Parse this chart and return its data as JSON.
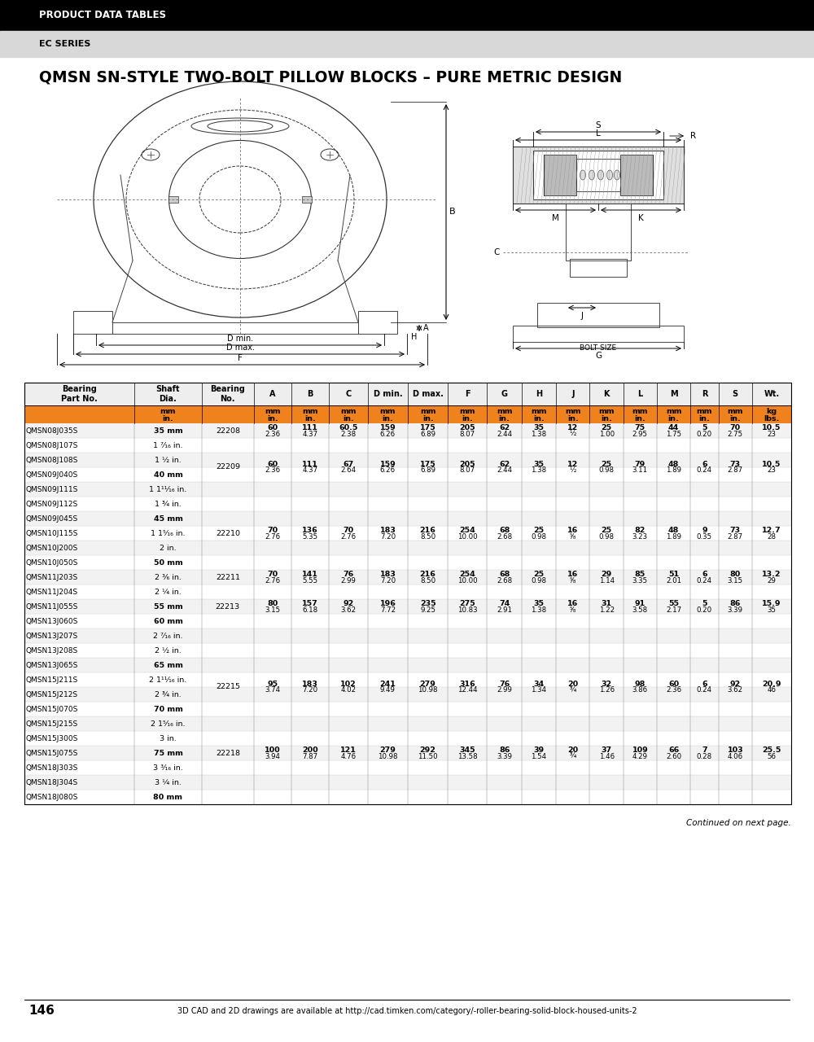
{
  "header_bar_color": "#000000",
  "header_text": "PRODUCT DATA TABLES",
  "header_text_color": "#ffffff",
  "subheader_bar_color": "#d9d9d9",
  "subheader_text": "EC SERIES",
  "subheader_text_color": "#000000",
  "title": "QMSN SN-STYLE TWO-BOLT PILLOW BLOCKS – PURE METRIC DESIGN",
  "orange_color": "#f0821e",
  "rows": [
    {
      "part": "QMSN08J035S",
      "shaft": "35 mm",
      "bearing": "",
      "A": "",
      "B": "",
      "C": "",
      "Dmin": "",
      "Dmax": "",
      "F": "",
      "G": "",
      "H": "",
      "J": "",
      "K": "",
      "L": "",
      "M": "",
      "R": "",
      "S": "",
      "Wt": "",
      "bold_shaft": true
    },
    {
      "part": "QMSN08J107S",
      "shaft": "1 ⁷⁄₁₆ in.",
      "bearing": "22208",
      "A": "60\n2.36",
      "B": "111\n4.37",
      "C": "60.5\n2.38",
      "Dmin": "159\n6.26",
      "Dmax": "175\n6.89",
      "F": "205\n8.07",
      "G": "62\n2.44",
      "H": "35\n1.38",
      "J": "12\n½",
      "K": "25\n1.00",
      "L": "75\n2.95",
      "M": "44\n1.75",
      "R": "5\n0.20",
      "S": "70\n2.75",
      "Wt": "10.5\n23",
      "bold_shaft": false
    },
    {
      "part": "QMSN08J108S",
      "shaft": "1 ½ in.",
      "bearing": "",
      "A": "",
      "B": "",
      "C": "",
      "Dmin": "",
      "Dmax": "",
      "F": "",
      "G": "",
      "H": "",
      "J": "",
      "K": "",
      "L": "",
      "M": "",
      "R": "",
      "S": "",
      "Wt": "",
      "bold_shaft": false
    },
    {
      "part": "QMSN09J040S",
      "shaft": "40 mm",
      "bearing": "",
      "A": "",
      "B": "",
      "C": "",
      "Dmin": "",
      "Dmax": "",
      "F": "",
      "G": "",
      "H": "",
      "J": "",
      "K": "",
      "L": "",
      "M": "",
      "R": "",
      "S": "",
      "Wt": "",
      "bold_shaft": true
    },
    {
      "part": "QMSN09J111S",
      "shaft": "1 1¹¹⁄₁₆ in.",
      "bearing": "22209",
      "A": "60\n2.36",
      "B": "111\n4.37",
      "C": "67\n2.64",
      "Dmin": "159\n6.26",
      "Dmax": "175\n6.89",
      "F": "205\n8.07",
      "G": "62\n2.44",
      "H": "35\n1.38",
      "J": "12\n½",
      "K": "25\n0.98",
      "L": "79\n3.11",
      "M": "48\n1.89",
      "R": "6\n0.24",
      "S": "73\n2.87",
      "Wt": "10.5\n23",
      "bold_shaft": false
    },
    {
      "part": "QMSN09J112S",
      "shaft": "1 ¾ in.",
      "bearing": "",
      "A": "",
      "B": "",
      "C": "",
      "Dmin": "",
      "Dmax": "",
      "F": "",
      "G": "",
      "H": "",
      "J": "",
      "K": "",
      "L": "",
      "M": "",
      "R": "",
      "S": "",
      "Wt": "",
      "bold_shaft": false
    },
    {
      "part": "QMSN09J045S",
      "shaft": "45 mm",
      "bearing": "",
      "A": "",
      "B": "",
      "C": "",
      "Dmin": "",
      "Dmax": "",
      "F": "",
      "G": "",
      "H": "",
      "J": "",
      "K": "",
      "L": "",
      "M": "",
      "R": "",
      "S": "",
      "Wt": "",
      "bold_shaft": true
    },
    {
      "part": "QMSN10J115S",
      "shaft": "1 1⁵⁄₁₆ in.",
      "bearing": "",
      "A": "",
      "B": "",
      "C": "",
      "Dmin": "",
      "Dmax": "",
      "F": "",
      "G": "",
      "H": "",
      "J": "",
      "K": "",
      "L": "",
      "M": "",
      "R": "",
      "S": "",
      "Wt": "",
      "bold_shaft": false
    },
    {
      "part": "QMSN10J200S",
      "shaft": "2 in.",
      "bearing": "22210",
      "A": "70\n2.76",
      "B": "136\n5.35",
      "C": "70\n2.76",
      "Dmin": "183\n7.20",
      "Dmax": "216\n8.50",
      "F": "254\n10.00",
      "G": "68\n2.68",
      "H": "25\n0.98",
      "J": "16\n⁵⁄₈",
      "K": "25\n0.98",
      "L": "82\n3.23",
      "M": "48\n1.89",
      "R": "9\n0.35",
      "S": "73\n2.87",
      "Wt": "12.7\n28",
      "bold_shaft": false
    },
    {
      "part": "QMSN10J050S",
      "shaft": "50 mm",
      "bearing": "",
      "A": "",
      "B": "",
      "C": "",
      "Dmin": "",
      "Dmax": "",
      "F": "",
      "G": "",
      "H": "",
      "J": "",
      "K": "",
      "L": "",
      "M": "",
      "R": "",
      "S": "",
      "Wt": "",
      "bold_shaft": true
    },
    {
      "part": "QMSN11J203S",
      "shaft": "2 ³⁄₆ in.",
      "bearing": "",
      "A": "",
      "B": "",
      "C": "",
      "Dmin": "",
      "Dmax": "",
      "F": "",
      "G": "",
      "H": "",
      "J": "",
      "K": "",
      "L": "",
      "M": "",
      "R": "",
      "S": "",
      "Wt": "",
      "bold_shaft": false
    },
    {
      "part": "QMSN11J204S",
      "shaft": "2 ¼ in.",
      "bearing": "22211",
      "A": "70\n2.76",
      "B": "141\n5.55",
      "C": "76\n2.99",
      "Dmin": "183\n7.20",
      "Dmax": "216\n8.50",
      "F": "254\n10.00",
      "G": "68\n2.68",
      "H": "25\n0.98",
      "J": "16\n⁵⁄₈",
      "K": "29\n1.14",
      "L": "85\n3.35",
      "M": "51\n2.01",
      "R": "6\n0.24",
      "S": "80\n3.15",
      "Wt": "13.2\n29",
      "bold_shaft": false
    },
    {
      "part": "QMSN11J055S",
      "shaft": "55 mm",
      "bearing": "",
      "A": "",
      "B": "",
      "C": "",
      "Dmin": "",
      "Dmax": "",
      "F": "",
      "G": "",
      "H": "",
      "J": "",
      "K": "",
      "L": "",
      "M": "",
      "R": "",
      "S": "",
      "Wt": "",
      "bold_shaft": true
    },
    {
      "part": "QMSN13J060S",
      "shaft": "60 mm",
      "bearing": "",
      "A": "",
      "B": "",
      "C": "",
      "Dmin": "",
      "Dmax": "",
      "F": "",
      "G": "",
      "H": "",
      "J": "",
      "K": "",
      "L": "",
      "M": "",
      "R": "",
      "S": "",
      "Wt": "",
      "bold_shaft": true
    },
    {
      "part": "QMSN13J207S",
      "shaft": "2 ⁷⁄₁₆ in.",
      "bearing": "22213",
      "A": "80\n3.15",
      "B": "157\n6.18",
      "C": "92\n3.62",
      "Dmin": "196\n7.72",
      "Dmax": "235\n9.25",
      "F": "275\n10.83",
      "G": "74\n2.91",
      "H": "35\n1.38",
      "J": "16\n⁵⁄₈",
      "K": "31\n1.22",
      "L": "91\n3.58",
      "M": "55\n2.17",
      "R": "5\n0.20",
      "S": "86\n3.39",
      "Wt": "15.9\n35",
      "bold_shaft": false
    },
    {
      "part": "QMSN13J208S",
      "shaft": "2 ½ in.",
      "bearing": "",
      "A": "",
      "B": "",
      "C": "",
      "Dmin": "",
      "Dmax": "",
      "F": "",
      "G": "",
      "H": "",
      "J": "",
      "K": "",
      "L": "",
      "M": "",
      "R": "",
      "S": "",
      "Wt": "",
      "bold_shaft": false
    },
    {
      "part": "QMSN13J065S",
      "shaft": "65 mm",
      "bearing": "",
      "A": "",
      "B": "",
      "C": "",
      "Dmin": "",
      "Dmax": "",
      "F": "",
      "G": "",
      "H": "",
      "J": "",
      "K": "",
      "L": "",
      "M": "",
      "R": "",
      "S": "",
      "Wt": "",
      "bold_shaft": true
    },
    {
      "part": "QMSN15J211S",
      "shaft": "2 1¹¹⁄₁₆ in.",
      "bearing": "",
      "A": "",
      "B": "",
      "C": "",
      "Dmin": "",
      "Dmax": "",
      "F": "",
      "G": "",
      "H": "",
      "J": "",
      "K": "",
      "L": "",
      "M": "",
      "R": "",
      "S": "",
      "Wt": "",
      "bold_shaft": false
    },
    {
      "part": "QMSN15J212S",
      "shaft": "2 ¾ in.",
      "bearing": "",
      "A": "",
      "B": "",
      "C": "",
      "Dmin": "",
      "Dmax": "",
      "F": "",
      "G": "",
      "H": "",
      "J": "",
      "K": "",
      "L": "",
      "M": "",
      "R": "",
      "S": "",
      "Wt": "",
      "bold_shaft": false
    },
    {
      "part": "QMSN15J070S",
      "shaft": "70 mm",
      "bearing": "22215",
      "A": "95\n3.74",
      "B": "183\n7.20",
      "C": "102\n4.02",
      "Dmin": "241\n9.49",
      "Dmax": "279\n10.98",
      "F": "316\n12.44",
      "G": "76\n2.99",
      "H": "34\n1.34",
      "J": "20\n¾",
      "K": "32\n1.26",
      "L": "98\n3.86",
      "M": "60\n2.36",
      "R": "6\n0.24",
      "S": "92\n3.62",
      "Wt": "20.9\n46",
      "bold_shaft": true
    },
    {
      "part": "QMSN15J215S",
      "shaft": "2 1⁵⁄₁₆ in.",
      "bearing": "",
      "A": "",
      "B": "",
      "C": "",
      "Dmin": "",
      "Dmax": "",
      "F": "",
      "G": "",
      "H": "",
      "J": "",
      "K": "",
      "L": "",
      "M": "",
      "R": "",
      "S": "",
      "Wt": "",
      "bold_shaft": false
    },
    {
      "part": "QMSN15J300S",
      "shaft": "3 in.",
      "bearing": "",
      "A": "",
      "B": "",
      "C": "",
      "Dmin": "",
      "Dmax": "",
      "F": "",
      "G": "",
      "H": "",
      "J": "",
      "K": "",
      "L": "",
      "M": "",
      "R": "",
      "S": "",
      "Wt": "",
      "bold_shaft": false
    },
    {
      "part": "QMSN15J075S",
      "shaft": "75 mm",
      "bearing": "",
      "A": "",
      "B": "",
      "C": "",
      "Dmin": "",
      "Dmax": "",
      "F": "",
      "G": "",
      "H": "",
      "J": "",
      "K": "",
      "L": "",
      "M": "",
      "R": "",
      "S": "",
      "Wt": "",
      "bold_shaft": true
    },
    {
      "part": "QMSN18J303S",
      "shaft": "3 ³⁄₁₆ in.",
      "bearing": "22218",
      "A": "100\n3.94",
      "B": "200\n7.87",
      "C": "121\n4.76",
      "Dmin": "279\n10.98",
      "Dmax": "292\n11.50",
      "F": "345\n13.58",
      "G": "86\n3.39",
      "H": "39\n1.54",
      "J": "20\n¾",
      "K": "37\n1.46",
      "L": "109\n4.29",
      "M": "66\n2.60",
      "R": "7\n0.28",
      "S": "103\n4.06",
      "Wt": "25.5\n56",
      "bold_shaft": false
    },
    {
      "part": "QMSN18J304S",
      "shaft": "3 ¼ in.",
      "bearing": "",
      "A": "",
      "B": "",
      "C": "",
      "Dmin": "",
      "Dmax": "",
      "F": "",
      "G": "",
      "H": "",
      "J": "",
      "K": "",
      "L": "",
      "M": "",
      "R": "",
      "S": "",
      "Wt": "",
      "bold_shaft": false
    },
    {
      "part": "QMSN18J080S",
      "shaft": "80 mm",
      "bearing": "",
      "A": "",
      "B": "",
      "C": "",
      "Dmin": "",
      "Dmax": "",
      "F": "",
      "G": "",
      "H": "",
      "J": "",
      "K": "",
      "L": "",
      "M": "",
      "R": "",
      "S": "",
      "Wt": "",
      "bold_shaft": true
    }
  ],
  "footer_text": "Continued on next page.",
  "page_number": "146",
  "bottom_text": "3D CAD and 2D drawings are available at http://cad.timken.com/category/-roller-bearing-solid-block-housed-units-2"
}
